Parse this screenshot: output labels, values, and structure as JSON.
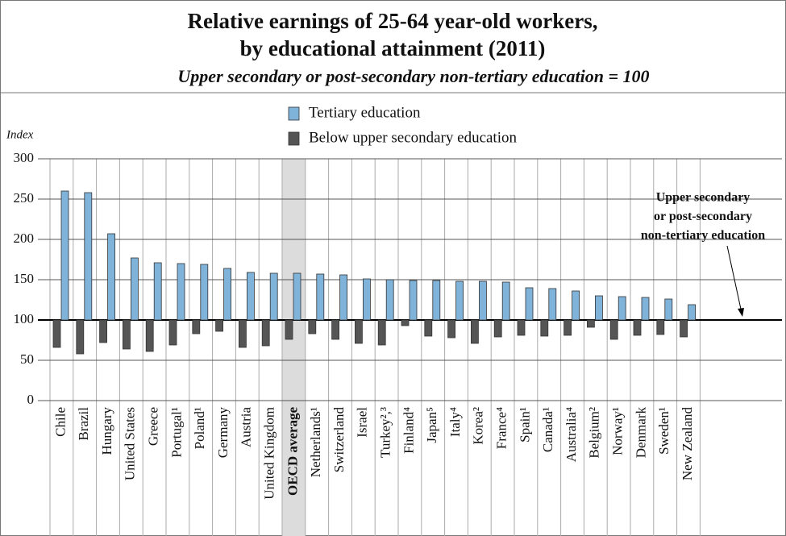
{
  "chart_data": {
    "type": "bar",
    "title": [
      "Relative earnings of 25-64 year-old workers,",
      "by educational attainment (2011)"
    ],
    "subtitle": "Upper secondary or post-secondary non-tertiary education = 100",
    "y_label": "Index",
    "annotation": [
      "Upper secondary",
      "or post-secondary",
      "non-tertiary education"
    ],
    "baseline": 100,
    "highlight": "OECD average",
    "categories": [
      "Chile",
      "Brazil",
      "Hungary",
      "United States",
      "Greece",
      "Portugal¹",
      "Poland¹",
      "Germany",
      "Austria",
      "United Kingdom",
      "OECD average",
      "Netherlands¹",
      "Switzerland",
      "Israel",
      "Turkey²,³",
      "Finland⁴",
      "Japan⁵",
      "Italy⁴",
      "Korea²",
      "France⁴",
      "Spain¹",
      "Canada¹",
      "Australia⁴",
      "Belgium²",
      "Norway¹",
      "Denmark",
      "Sweden¹",
      "New Zealand"
    ],
    "series": [
      {
        "name": "Tertiary education",
        "color": "#80b3da",
        "values": [
          260,
          258,
          207,
          177,
          171,
          170,
          169,
          164,
          159,
          158,
          158,
          157,
          156,
          151,
          150,
          149,
          149,
          148,
          148,
          147,
          140,
          139,
          136,
          130,
          129,
          128,
          126,
          119
        ]
      },
      {
        "name": "Below upper secondary education",
        "color": "#555555",
        "values": [
          66,
          58,
          72,
          64,
          61,
          69,
          83,
          86,
          66,
          68,
          76,
          83,
          76,
          71,
          69,
          93,
          80,
          78,
          71,
          79,
          81,
          80,
          81,
          91,
          76,
          81,
          82,
          79
        ]
      }
    ],
    "ylim": [
      0,
      300
    ],
    "yticks": [
      0,
      50,
      100,
      150,
      200,
      250,
      300
    ],
    "grid": true
  }
}
